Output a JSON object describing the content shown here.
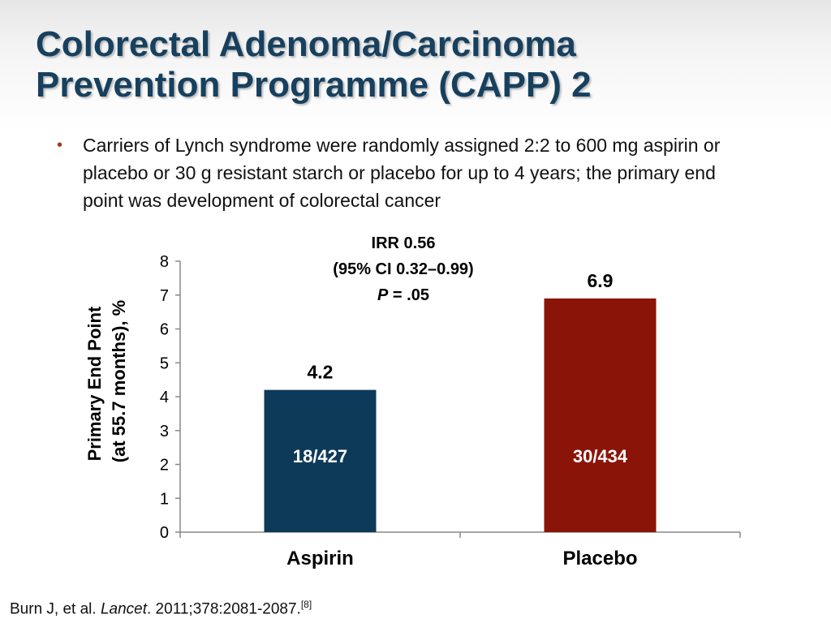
{
  "slide": {
    "title_line1": "Colorectal Adenoma/Carcinoma",
    "title_line2": "Prevention Programme (CAPP) 2",
    "bullet": "Carriers of Lynch syndrome were randomly assigned 2:2 to 600 mg aspirin or placebo or 30 g resistant starch or placebo for up to 4 years; the primary end point was development of colorectal cancer",
    "bullet_marker": "•",
    "citation": {
      "authors": "Burn J, et al.",
      "journal": "Lancet",
      "details": ". 2011;378:2081-2087.",
      "ref": "[8]"
    }
  },
  "chart_data": {
    "type": "bar",
    "categories": [
      "Aspirin",
      "Placebo"
    ],
    "values": [
      4.2,
      6.9
    ],
    "value_labels": [
      "4.2",
      "6.9"
    ],
    "inner_labels": [
      "18/427",
      "30/434"
    ],
    "ylabel_line1": "Primary End Point",
    "ylabel_line2": "(at 55.7 months), %",
    "ylim": [
      0,
      8
    ],
    "yticks": [
      0,
      1,
      2,
      3,
      4,
      5,
      6,
      7,
      8
    ],
    "grid": false,
    "bar_colors": [
      "#0e3a59",
      "#8b1408"
    ],
    "annotation": {
      "line1": "IRR 0.56",
      "line2": "(95% CI 0.32–0.99)",
      "line3_italic": "P",
      "line3_rest": " = .05"
    }
  }
}
